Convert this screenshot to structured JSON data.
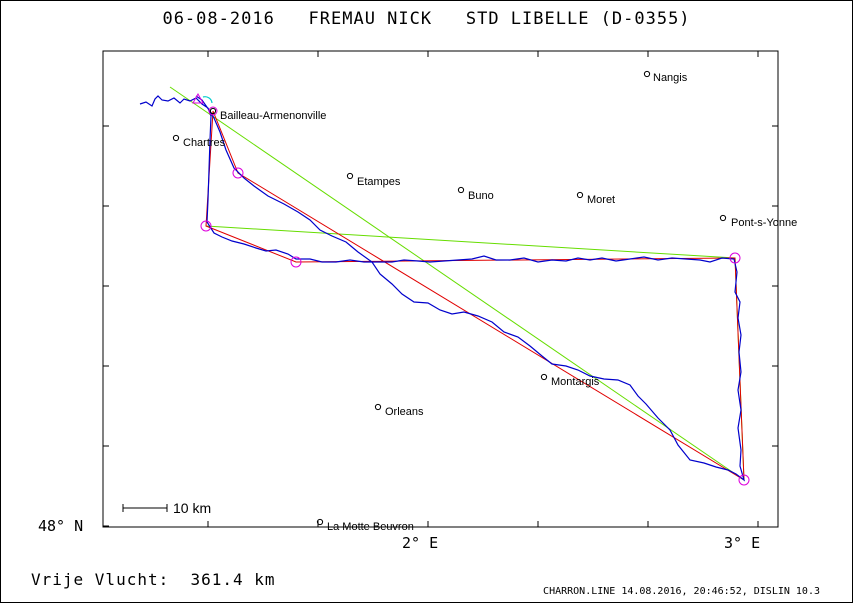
{
  "header": {
    "date": "06-08-2016",
    "pilot": "FREMAU NICK",
    "glider": "STD LIBELLE (D-0355)"
  },
  "footer": {
    "flight_label": "Vrije Vlucht:",
    "distance": "361.4 km",
    "file_info": "CHARRON.LINE 14.08.2016, 20:46:52, DISLIN 10.3"
  },
  "map": {
    "scale_label": "10 km",
    "lat_label": "48° N",
    "lon_labels": [
      "2° E",
      "3° E"
    ],
    "colors": {
      "track": "#0000cc",
      "task": "#e00000",
      "fai": "#66dd00",
      "turnpoint": "#dd00dd",
      "start": "#00cccc"
    },
    "places": [
      {
        "name": "Nangis"
      },
      {
        "name": "Bailleau-Armenonville"
      },
      {
        "name": "Chartres"
      },
      {
        "name": "Etampes"
      },
      {
        "name": "Buno"
      },
      {
        "name": "Moret"
      },
      {
        "name": "Pont-s-Yonne"
      },
      {
        "name": "Montargis"
      },
      {
        "name": "Orleans"
      },
      {
        "name": "La Motte Beuvron"
      }
    ]
  }
}
